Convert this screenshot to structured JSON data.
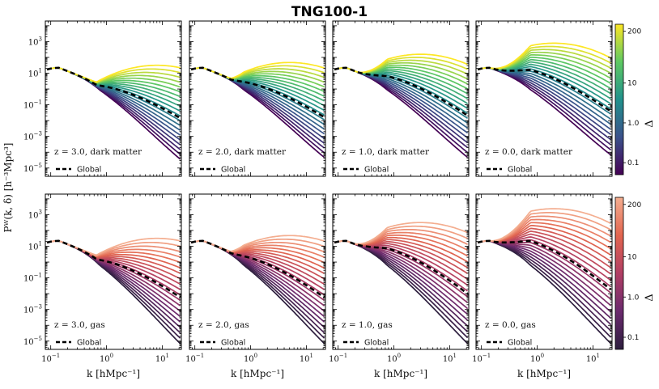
{
  "chart_data": {
    "type": "line",
    "title": "TNG100-1",
    "xlabel": "k [hMpc⁻¹]",
    "ylabel": "Pᵂ(k, δ) [h⁻³Mpc³]",
    "xscale": "log",
    "yscale": "log",
    "xlim": [
      0.08,
      22
    ],
    "ylim": [
      3e-06,
      20000
    ],
    "x_tick_labels": [
      "10⁻¹",
      "10⁰",
      "10¹"
    ],
    "y_tick_labels": [
      "10⁻⁵",
      "10⁻³",
      "10⁻¹",
      "10¹",
      "10³"
    ],
    "legend": [
      "Global"
    ],
    "legend_position": "lower-left",
    "density_bins": 20,
    "colorbar": {
      "label": "Δ",
      "tick_labels": [
        "0.1",
        "1.0",
        "10",
        "200"
      ],
      "range": [
        0.05,
        300
      ],
      "dark_matter_cmap": [
        "#440154",
        "#3b528b",
        "#21918c",
        "#5ec962",
        "#fde725"
      ],
      "gas_cmap": [
        "#2d1e3e",
        "#6b2a6e",
        "#b13f64",
        "#e2654f",
        "#f4ae90"
      ]
    },
    "panels": [
      {
        "component": "dark matter",
        "redshift": "3.0",
        "label": "z = 3.0,  dark matter",
        "k_peak": 8,
        "high_amp": 20,
        "low_tail": 1.5e-05
      },
      {
        "component": "dark matter",
        "redshift": "2.0",
        "label": "z = 2.0,  dark matter",
        "k_peak": 5,
        "high_amp": 30,
        "low_tail": 2e-05
      },
      {
        "component": "dark matter",
        "redshift": "1.0",
        "label": "z = 1.0,  dark matter",
        "k_peak": 3,
        "high_amp": 100,
        "low_tail": 2e-05
      },
      {
        "component": "dark matter",
        "redshift": "0.0",
        "label": "z = 0.0,  dark matter",
        "k_peak": 2,
        "high_amp": 500,
        "low_tail": 3e-05
      },
      {
        "component": "gas",
        "redshift": "3.0",
        "label": "z = 3.0,  gas",
        "k_peak": 8,
        "high_amp": 20,
        "low_tail": 5e-06
      },
      {
        "component": "gas",
        "redshift": "2.0",
        "label": "z = 2.0,  gas",
        "k_peak": 5,
        "high_amp": 30,
        "low_tail": 5e-06
      },
      {
        "component": "gas",
        "redshift": "1.0",
        "label": "z = 1.0,  gas",
        "k_peak": 3,
        "high_amp": 200,
        "low_tail": 5e-06
      },
      {
        "component": "gas",
        "redshift": "0.0",
        "label": "z = 0.0,  gas",
        "k_peak": 2,
        "high_amp": 1500,
        "low_tail": 5e-06
      }
    ]
  }
}
